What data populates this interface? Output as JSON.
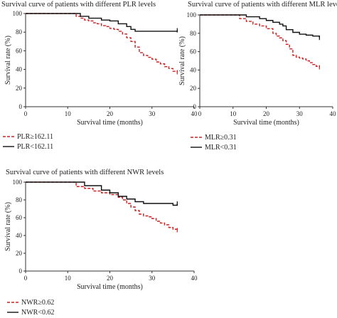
{
  "chart_data": [
    {
      "type": "line",
      "title": "Survival curve of patients with different PLR levels",
      "xlabel": "Survival time (months)",
      "ylabel": "Survival rate (%)",
      "xlim": [
        0,
        40
      ],
      "ylim": [
        0,
        100
      ],
      "x_ticks": [
        "0",
        "10",
        "20",
        "30",
        "40"
      ],
      "y_ticks": [
        "0",
        "20",
        "40",
        "60",
        "80",
        "100"
      ],
      "grid": false,
      "legend_position": "bottom-left",
      "series": [
        {
          "name": "PLR≥162.11",
          "style": "dashed",
          "color": "#cc2222",
          "x": [
            0,
            8,
            12,
            13,
            14,
            15,
            16,
            17,
            18,
            19,
            20,
            21,
            22,
            23,
            24,
            25,
            26,
            27,
            28,
            29,
            30,
            31,
            32,
            33,
            34,
            35,
            36
          ],
          "y": [
            100,
            100,
            97,
            95,
            93,
            92,
            90,
            89,
            87,
            86,
            84,
            83,
            81,
            78,
            74,
            70,
            64,
            58,
            55,
            53,
            51,
            48,
            46,
            43,
            41,
            38,
            37
          ]
        },
        {
          "name": "PLR<162.11",
          "style": "solid",
          "color": "#111111",
          "x": [
            0,
            10,
            13,
            15,
            18,
            20,
            22,
            24,
            25,
            26,
            36
          ],
          "y": [
            100,
            100,
            97,
            95,
            93,
            92,
            89,
            86,
            83,
            81,
            82
          ]
        }
      ]
    },
    {
      "type": "line",
      "title": "Survival curve of patients with different MLR levels",
      "xlabel": "Survival time (months)",
      "ylabel": "Survival rate (%)",
      "xlim": [
        0,
        40
      ],
      "ylim": [
        0,
        100
      ],
      "x_ticks": [
        "0",
        "10",
        "20",
        "30",
        "40"
      ],
      "y_ticks": [
        "0",
        "20",
        "40",
        "60",
        "80",
        "100"
      ],
      "grid": false,
      "legend_position": "bottom-left",
      "series": [
        {
          "name": "MLR≥0.31",
          "style": "dashed",
          "color": "#cc2222",
          "x": [
            0,
            8,
            12,
            14,
            16,
            18,
            20,
            22,
            23,
            24,
            25,
            26,
            27,
            28,
            29,
            30,
            31,
            32,
            33,
            34,
            35,
            36
          ],
          "y": [
            100,
            100,
            96,
            93,
            90,
            88,
            85,
            80,
            77,
            75,
            72,
            68,
            63,
            56,
            54,
            53,
            52,
            50,
            48,
            46,
            44,
            43
          ]
        },
        {
          "name": "MLR<0.31",
          "style": "solid",
          "color": "#111111",
          "x": [
            0,
            10,
            14,
            18,
            20,
            22,
            24,
            25,
            26,
            28,
            30,
            32,
            34,
            36
          ],
          "y": [
            100,
            100,
            98,
            96,
            94,
            92,
            90,
            88,
            84,
            81,
            79,
            78,
            77,
            75
          ]
        }
      ]
    },
    {
      "type": "line",
      "title": "Survival curve of patients with different NWR levels",
      "xlabel": "Survival time (months)",
      "ylabel": "Survival rate (%)",
      "xlim": [
        0,
        40
      ],
      "ylim": [
        0,
        100
      ],
      "x_ticks": [
        "0",
        "10",
        "20",
        "30",
        "40"
      ],
      "y_ticks": [
        "0",
        "20",
        "40",
        "60",
        "80",
        "100"
      ],
      "grid": false,
      "legend_position": "bottom-left",
      "series": [
        {
          "name": "NWR≥0.62",
          "style": "dashed",
          "color": "#cc2222",
          "x": [
            0,
            8,
            12,
            14,
            16,
            18,
            20,
            22,
            23,
            24,
            25,
            26,
            27,
            28,
            29,
            30,
            31,
            32,
            33,
            34,
            35,
            36
          ],
          "y": [
            100,
            100,
            95,
            93,
            90,
            88,
            86,
            83,
            80,
            76,
            72,
            68,
            64,
            62,
            61,
            59,
            56,
            54,
            52,
            49,
            47,
            46
          ]
        },
        {
          "name": "NWR<0.62",
          "style": "solid",
          "color": "#111111",
          "x": [
            0,
            10,
            14,
            18,
            20,
            22,
            24,
            26,
            28,
            35,
            36
          ],
          "y": [
            100,
            100,
            96,
            91,
            88,
            84,
            81,
            78,
            76,
            74,
            76
          ]
        }
      ]
    }
  ]
}
